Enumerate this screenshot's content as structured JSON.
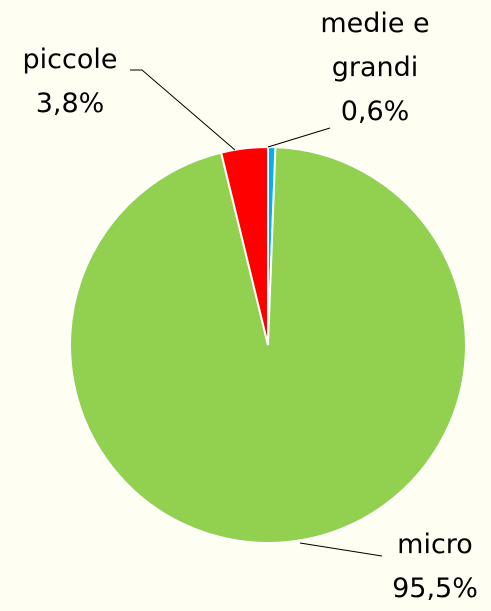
{
  "chart_data": {
    "type": "pie",
    "categories": [
      "medie e grandi",
      "micro",
      "piccole"
    ],
    "values": [
      0.6,
      95.5,
      3.8
    ],
    "value_labels": [
      "0,6%",
      "95,5%",
      "3,8%"
    ],
    "colors": [
      "#00b0f0",
      "#92d050",
      "#ff0000"
    ]
  }
}
